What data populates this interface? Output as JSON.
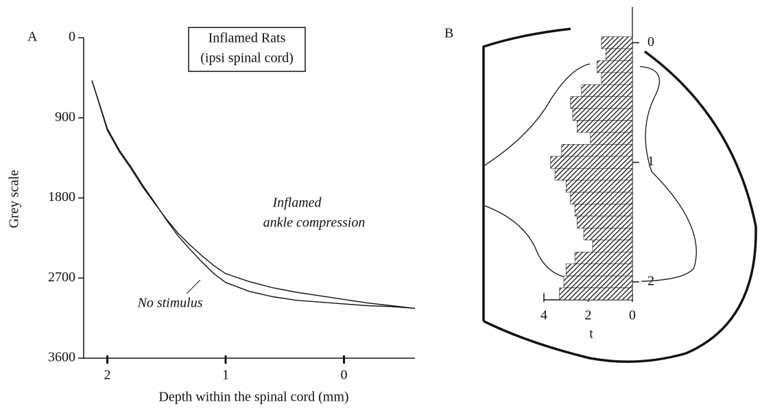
{
  "chart_data": [
    {
      "type": "line",
      "panel_label": "A",
      "title": "Inflamed Rats",
      "subtitle": "(ipsi spinal cord)",
      "x_label": "Depth within the spinal cord (mm)",
      "y_label": "Grey scale",
      "annotations": [
        "Inflamed",
        "ankle compression",
        "No stimulus"
      ],
      "x": [
        2.13,
        2.0,
        1.9,
        1.8,
        1.7,
        1.6,
        1.5,
        1.4,
        1.3,
        1.2,
        1.1,
        1.0,
        0.8,
        0.6,
        0.4,
        0.2,
        0,
        -0.2,
        -0.4,
        -0.6
      ],
      "series": [
        {
          "color": "#111111",
          "values": [
            480,
            1040,
            1280,
            1470,
            1680,
            1860,
            2040,
            2200,
            2330,
            2450,
            2560,
            2650,
            2740,
            2810,
            2860,
            2900,
            2940,
            2980,
            3010,
            3040
          ]
        },
        {
          "color": "#111111",
          "values": [
            480,
            1020,
            1260,
            1450,
            1660,
            1850,
            2050,
            2230,
            2380,
            2520,
            2650,
            2750,
            2850,
            2910,
            2950,
            2970,
            2990,
            3010,
            3020,
            3040
          ]
        }
      ],
      "xlim": [
        2.2,
        -0.6
      ],
      "xticks": [
        2,
        1,
        0
      ],
      "ylim": [
        3600,
        0
      ],
      "yticks": [
        0,
        900,
        1800,
        2700,
        3600
      ]
    },
    {
      "type": "hbar",
      "panel_label": "B",
      "x_label": "t",
      "depth": [
        0,
        0.1,
        0.2,
        0.3,
        0.4,
        0.5,
        0.6,
        0.7,
        0.8,
        0.9,
        1.0,
        1.1,
        1.2,
        1.3,
        1.4,
        1.5,
        1.6,
        1.7,
        1.8,
        1.9,
        2.0,
        2.1
      ],
      "values": [
        1.4,
        1.2,
        1.6,
        1.4,
        2.3,
        2.8,
        2.7,
        2.5,
        1.9,
        3.2,
        3.7,
        3.5,
        3.0,
        2.8,
        2.6,
        2.5,
        2.2,
        1.8,
        2.6,
        3.0,
        3.1,
        3.3
      ],
      "color": "#222222",
      "xlim": [
        4,
        0
      ],
      "xticks": [
        4,
        2,
        0
      ],
      "ylim": [
        2.15,
        -0.3
      ],
      "yticks": [
        0,
        1,
        2
      ]
    }
  ]
}
